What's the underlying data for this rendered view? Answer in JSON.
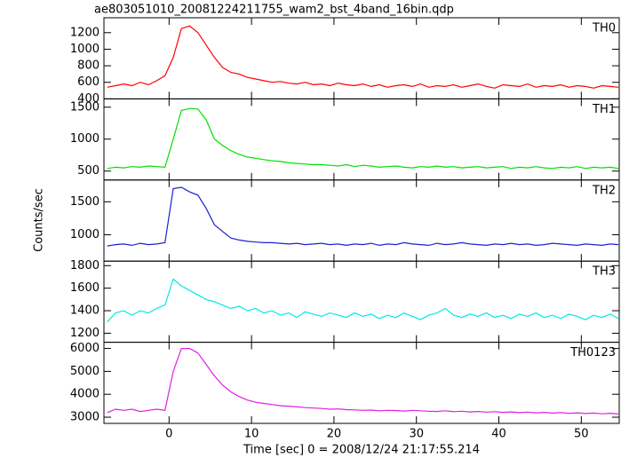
{
  "chart_data": {
    "type": "line",
    "title": "ae803051010_20081224211755_wam2_bst_4band_16bin.qdp",
    "xlabel": "Time [sec] 0 = 2008/12/24 21:17:55.214",
    "ylabel": "Counts/sec",
    "xlim": [
      -7.9,
      54.6
    ],
    "xticks": [
      0,
      10,
      20,
      30,
      40,
      50
    ],
    "x": [
      -7.5,
      -6.5,
      -5.5,
      -4.5,
      -3.5,
      -2.5,
      -1.5,
      -0.5,
      0.5,
      1.5,
      2.5,
      3.5,
      4.5,
      5.5,
      6.5,
      7.5,
      8.5,
      9.5,
      10.5,
      11.5,
      12.5,
      13.5,
      14.5,
      15.5,
      16.5,
      17.5,
      18.5,
      19.5,
      20.5,
      21.5,
      22.5,
      23.5,
      24.5,
      25.5,
      26.5,
      27.5,
      28.5,
      29.5,
      30.5,
      31.5,
      32.5,
      33.5,
      34.5,
      35.5,
      36.5,
      37.5,
      38.5,
      39.5,
      40.5,
      41.5,
      42.5,
      43.5,
      44.5,
      45.5,
      46.5,
      47.5,
      48.5,
      49.5,
      50.5,
      51.5,
      52.5,
      53.5,
      54.5
    ],
    "series": [
      {
        "name": "TH0",
        "color": "#ff0000",
        "ylim": [
          400,
          1380
        ],
        "yticks": [
          400,
          600,
          800,
          1000,
          1200
        ],
        "values": [
          540,
          560,
          580,
          560,
          600,
          570,
          620,
          680,
          900,
          1250,
          1280,
          1200,
          1050,
          900,
          780,
          720,
          700,
          660,
          640,
          620,
          600,
          610,
          590,
          580,
          600,
          570,
          580,
          560,
          590,
          570,
          560,
          580,
          550,
          570,
          540,
          560,
          570,
          550,
          580,
          540,
          560,
          550,
          570,
          540,
          560,
          580,
          550,
          530,
          570,
          560,
          550,
          580,
          540,
          560,
          550,
          570,
          540,
          560,
          550,
          530,
          560,
          550,
          540
        ]
      },
      {
        "name": "TH1",
        "color": "#00e000",
        "ylim": [
          360,
          1630
        ],
        "yticks": [
          500,
          1000,
          1500
        ],
        "values": [
          540,
          560,
          550,
          570,
          560,
          580,
          570,
          560,
          1000,
          1450,
          1480,
          1470,
          1300,
          1000,
          900,
          820,
          760,
          720,
          700,
          680,
          660,
          650,
          630,
          620,
          610,
          600,
          600,
          590,
          580,
          600,
          570,
          590,
          580,
          560,
          570,
          580,
          560,
          550,
          570,
          560,
          580,
          560,
          570,
          550,
          560,
          570,
          550,
          560,
          570,
          540,
          560,
          550,
          570,
          550,
          540,
          560,
          550,
          570,
          540,
          560,
          550,
          560,
          540
        ]
      },
      {
        "name": "TH2",
        "color": "#2020d0",
        "ylim": [
          600,
          1830
        ],
        "yticks": [
          1000,
          1500
        ],
        "values": [
          830,
          850,
          860,
          840,
          870,
          850,
          860,
          880,
          1700,
          1720,
          1650,
          1600,
          1400,
          1150,
          1050,
          950,
          920,
          900,
          890,
          880,
          880,
          870,
          860,
          870,
          850,
          860,
          870,
          850,
          860,
          840,
          860,
          850,
          870,
          840,
          860,
          850,
          880,
          860,
          850,
          840,
          870,
          850,
          860,
          880,
          860,
          850,
          840,
          860,
          850,
          870,
          850,
          860,
          840,
          850,
          870,
          860,
          850,
          840,
          860,
          850,
          840,
          860,
          850
        ]
      },
      {
        "name": "TH3",
        "color": "#00e8e8",
        "ylim": [
          1120,
          1840
        ],
        "yticks": [
          1200,
          1400,
          1600,
          1800
        ],
        "values": [
          1300,
          1380,
          1400,
          1360,
          1400,
          1380,
          1420,
          1450,
          1680,
          1620,
          1580,
          1540,
          1500,
          1480,
          1450,
          1420,
          1440,
          1400,
          1420,
          1380,
          1400,
          1360,
          1380,
          1340,
          1390,
          1370,
          1350,
          1380,
          1360,
          1340,
          1380,
          1350,
          1370,
          1330,
          1360,
          1340,
          1380,
          1350,
          1320,
          1360,
          1380,
          1420,
          1360,
          1340,
          1370,
          1350,
          1380,
          1340,
          1360,
          1330,
          1370,
          1350,
          1380,
          1340,
          1360,
          1330,
          1370,
          1350,
          1320,
          1360,
          1340,
          1370,
          1330
        ]
      },
      {
        "name": "TH0123",
        "color": "#e020e0",
        "ylim": [
          2730,
          6270
        ],
        "yticks": [
          3000,
          4000,
          5000,
          6000
        ],
        "values": [
          3200,
          3350,
          3300,
          3350,
          3250,
          3300,
          3350,
          3300,
          5000,
          6000,
          6000,
          5800,
          5300,
          4800,
          4400,
          4100,
          3900,
          3750,
          3650,
          3600,
          3550,
          3500,
          3480,
          3450,
          3420,
          3400,
          3380,
          3350,
          3360,
          3330,
          3320,
          3300,
          3310,
          3280,
          3300,
          3290,
          3270,
          3300,
          3280,
          3260,
          3250,
          3280,
          3240,
          3260,
          3230,
          3250,
          3220,
          3240,
          3210,
          3230,
          3200,
          3220,
          3190,
          3210,
          3180,
          3200,
          3170,
          3190,
          3160,
          3180,
          3150,
          3170,
          3140
        ]
      }
    ]
  }
}
